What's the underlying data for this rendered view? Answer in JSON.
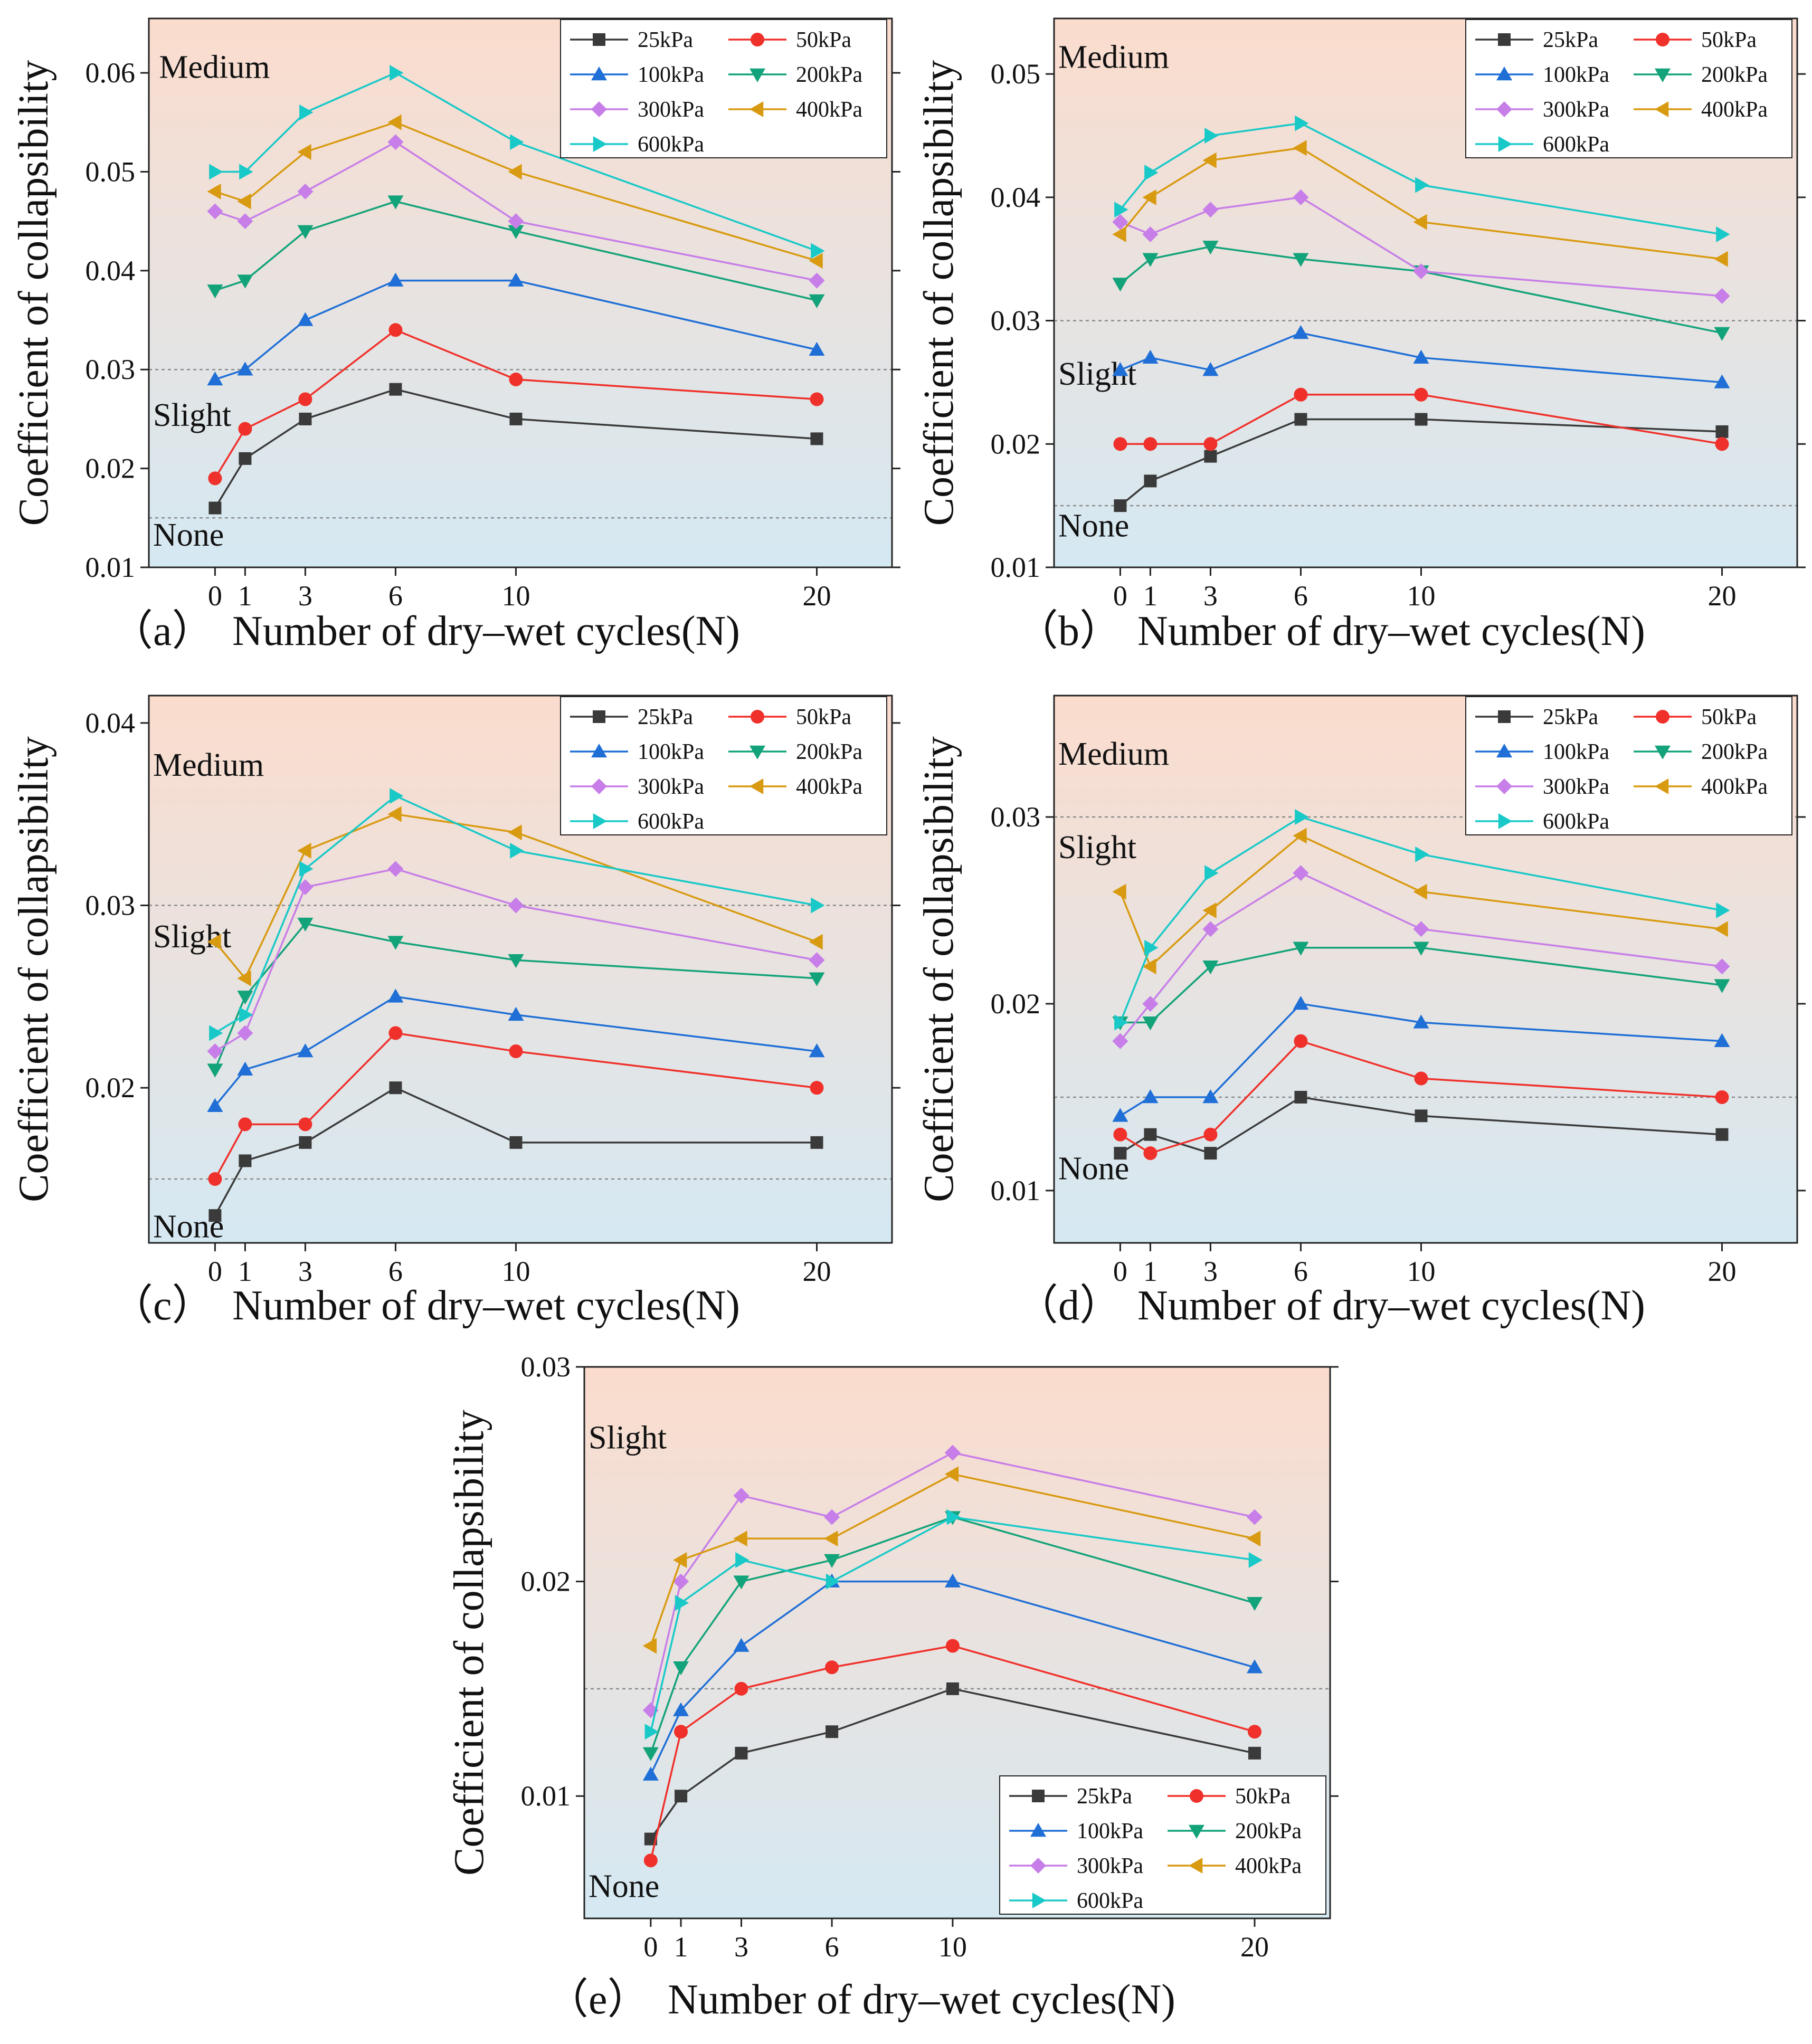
{
  "figure": {
    "series_names": [
      "25kPa",
      "50kPa",
      "100kPa",
      "200kPa",
      "300kPa",
      "400kPa",
      "600kPa"
    ],
    "series_colors": [
      "#3a3a3a",
      "#f0302a",
      "#1f6fd6",
      "#13a37a",
      "#c77ee8",
      "#d89a10",
      "#18c9c8"
    ],
    "series_markers": [
      "square",
      "circle",
      "triangle-up",
      "triangle-down",
      "diamond",
      "triangle-left",
      "triangle-right"
    ],
    "colors": {
      "zone_top": "#fbdccd",
      "zone_bottom": "#d5e9f3",
      "threshold_line": "#8a8a8a"
    }
  },
  "chart_data": [
    {
      "panel": "(a)",
      "type": "line",
      "title": "",
      "xlabel": "Number of dry–wet cycles(N)",
      "ylabel": "Coefficient of collapsibility",
      "x": [
        0,
        1,
        3,
        6,
        10,
        20
      ],
      "x_ticks": [
        "0",
        "1",
        "3",
        "6",
        "10",
        "20"
      ],
      "xlim": [
        -2.2,
        22.5
      ],
      "ylim": [
        0.01,
        0.0655
      ],
      "y_ticks": [
        0.01,
        0.02,
        0.03,
        0.04,
        0.05,
        0.06
      ],
      "y_tick_labels": [
        "0.01",
        "0.02",
        "0.03",
        "0.04",
        "0.05",
        "0.06"
      ],
      "thresholds": [
        0.015,
        0.03
      ],
      "zones": [
        {
          "label": "Medium",
          "y": 0.0595,
          "x": -2.0
        },
        {
          "label": "Slight",
          "y": 0.0243,
          "x": -2.2
        },
        {
          "label": "None",
          "y": 0.0122,
          "x": -2.2
        }
      ],
      "legend_position": "top-right",
      "series": [
        {
          "name": "25kPa",
          "values": [
            0.016,
            0.021,
            0.025,
            0.028,
            0.025,
            0.023
          ]
        },
        {
          "name": "50kPa",
          "values": [
            0.019,
            0.024,
            0.027,
            0.034,
            0.029,
            0.027
          ]
        },
        {
          "name": "100kPa",
          "values": [
            0.029,
            0.03,
            0.035,
            0.039,
            0.039,
            0.032
          ]
        },
        {
          "name": "200kPa",
          "values": [
            0.038,
            0.039,
            0.044,
            0.047,
            0.044,
            0.037
          ]
        },
        {
          "name": "300kPa",
          "values": [
            0.046,
            0.045,
            0.048,
            0.053,
            0.045,
            0.039
          ]
        },
        {
          "name": "400kPa",
          "values": [
            0.048,
            0.047,
            0.052,
            0.055,
            0.05,
            0.041
          ]
        },
        {
          "name": "600kPa",
          "values": [
            0.05,
            0.05,
            0.056,
            0.06,
            0.053,
            0.042
          ]
        }
      ]
    },
    {
      "panel": "(b)",
      "type": "line",
      "title": "",
      "xlabel": "Number of dry–wet cycles(N)",
      "ylabel": "Coefficient of collapsibility",
      "x": [
        0,
        1,
        3,
        6,
        10,
        20
      ],
      "x_ticks": [
        "0",
        "1",
        "3",
        "6",
        "10",
        "20"
      ],
      "xlim": [
        -2.2,
        22.5
      ],
      "ylim": [
        0.01,
        0.0545
      ],
      "y_ticks": [
        0.01,
        0.02,
        0.03,
        0.04,
        0.05
      ],
      "y_tick_labels": [
        "0.01",
        "0.02",
        "0.03",
        "0.04",
        "0.05"
      ],
      "thresholds": [
        0.015,
        0.03
      ],
      "zones": [
        {
          "label": "Medium",
          "y": 0.0505,
          "x": -2.2
        },
        {
          "label": "Slight",
          "y": 0.0248,
          "x": -2.2
        },
        {
          "label": "None",
          "y": 0.0125,
          "x": -2.2
        }
      ],
      "legend_position": "top-right",
      "series": [
        {
          "name": "25kPa",
          "values": [
            0.015,
            0.017,
            0.019,
            0.022,
            0.022,
            0.021
          ]
        },
        {
          "name": "50kPa",
          "values": [
            0.02,
            0.02,
            0.02,
            0.024,
            0.024,
            0.02
          ]
        },
        {
          "name": "100kPa",
          "values": [
            0.026,
            0.027,
            0.026,
            0.029,
            0.027,
            0.025
          ]
        },
        {
          "name": "200kPa",
          "values": [
            0.033,
            0.035,
            0.036,
            0.035,
            0.034,
            0.029
          ]
        },
        {
          "name": "300kPa",
          "values": [
            0.038,
            0.037,
            0.039,
            0.04,
            0.034,
            0.032
          ]
        },
        {
          "name": "400kPa",
          "values": [
            0.037,
            0.04,
            0.043,
            0.044,
            0.038,
            0.035
          ]
        },
        {
          "name": "600kPa",
          "values": [
            0.039,
            0.042,
            0.045,
            0.046,
            0.041,
            0.037
          ]
        }
      ]
    },
    {
      "panel": "(c)",
      "type": "line",
      "title": "",
      "xlabel": "Number of dry–wet cycles(N)",
      "ylabel": "Coefficient of collapsibility",
      "x": [
        0,
        1,
        3,
        6,
        10,
        20
      ],
      "x_ticks": [
        "0",
        "1",
        "3",
        "6",
        "10",
        "20"
      ],
      "xlim": [
        -2.2,
        22.5
      ],
      "ylim": [
        0.0115,
        0.0415
      ],
      "y_ticks": [
        0.02,
        0.03,
        0.04
      ],
      "y_tick_labels": [
        "0.02",
        "0.03",
        "0.04"
      ],
      "thresholds": [
        0.015,
        0.03
      ],
      "zones": [
        {
          "label": "Medium",
          "y": 0.0371,
          "x": -2.2
        },
        {
          "label": "Slight",
          "y": 0.0277,
          "x": -2.2
        },
        {
          "label": "None",
          "y": 0.0118,
          "x": -2.2
        }
      ],
      "legend_position": "top-right",
      "series": [
        {
          "name": "25kPa",
          "values": [
            0.013,
            0.016,
            0.017,
            0.02,
            0.017,
            0.017
          ]
        },
        {
          "name": "50kPa",
          "values": [
            0.015,
            0.018,
            0.018,
            0.023,
            0.022,
            0.02
          ]
        },
        {
          "name": "100kPa",
          "values": [
            0.019,
            0.021,
            0.022,
            0.025,
            0.024,
            0.022
          ]
        },
        {
          "name": "200kPa",
          "values": [
            0.021,
            0.025,
            0.029,
            0.028,
            0.027,
            0.026
          ]
        },
        {
          "name": "300kPa",
          "values": [
            0.022,
            0.023,
            0.031,
            0.032,
            0.03,
            0.027
          ]
        },
        {
          "name": "400kPa",
          "values": [
            0.028,
            0.026,
            0.033,
            0.035,
            0.034,
            0.028
          ]
        },
        {
          "name": "600kPa",
          "values": [
            0.023,
            0.024,
            0.032,
            0.036,
            0.033,
            0.03
          ]
        }
      ]
    },
    {
      "panel": "(d)",
      "type": "line",
      "title": "",
      "xlabel": "Number of dry–wet cycles(N)",
      "ylabel": "Coefficient of collapsibility",
      "x": [
        0,
        1,
        3,
        6,
        10,
        20
      ],
      "x_ticks": [
        "0",
        "1",
        "3",
        "6",
        "10",
        "20"
      ],
      "xlim": [
        -2.2,
        22.5
      ],
      "ylim": [
        0.0072,
        0.0365
      ],
      "y_ticks": [
        0.01,
        0.02,
        0.03
      ],
      "y_tick_labels": [
        "0.01",
        "0.02",
        "0.03"
      ],
      "thresholds": [
        0.015,
        0.03
      ],
      "zones": [
        {
          "label": "Medium",
          "y": 0.0328,
          "x": -2.2
        },
        {
          "label": "Slight",
          "y": 0.0278,
          "x": -2.2
        },
        {
          "label": "None",
          "y": 0.0106,
          "x": -2.2
        }
      ],
      "legend_position": "top-right",
      "series": [
        {
          "name": "25kPa",
          "values": [
            0.012,
            0.013,
            0.012,
            0.015,
            0.014,
            0.013
          ]
        },
        {
          "name": "50kPa",
          "values": [
            0.013,
            0.012,
            0.013,
            0.018,
            0.016,
            0.015
          ]
        },
        {
          "name": "100kPa",
          "values": [
            0.014,
            0.015,
            0.015,
            0.02,
            0.019,
            0.018
          ]
        },
        {
          "name": "200kPa",
          "values": [
            0.019,
            0.019,
            0.022,
            0.023,
            0.023,
            0.021
          ]
        },
        {
          "name": "300kPa",
          "values": [
            0.018,
            0.02,
            0.024,
            0.027,
            0.024,
            0.022
          ]
        },
        {
          "name": "400kPa",
          "values": [
            0.026,
            0.022,
            0.025,
            0.029,
            0.026,
            0.024
          ]
        },
        {
          "name": "600kPa",
          "values": [
            0.019,
            0.023,
            0.027,
            0.03,
            0.028,
            0.025
          ]
        }
      ]
    },
    {
      "panel": "(e)",
      "type": "line",
      "title": "",
      "xlabel": "Number of dry–wet cycles(N)",
      "ylabel": "Coefficient of collapsibility",
      "x": [
        0,
        1,
        3,
        6,
        10,
        20
      ],
      "x_ticks": [
        "0",
        "1",
        "3",
        "6",
        "10",
        "20"
      ],
      "xlim": [
        -2.2,
        22.5
      ],
      "ylim": [
        0.0043,
        0.03
      ],
      "y_ticks": [
        0.01,
        0.02,
        0.03
      ],
      "y_tick_labels": [
        "0.01",
        "0.02",
        "0.03"
      ],
      "thresholds": [
        0.015
      ],
      "zones": [
        {
          "label": "Slight",
          "y": 0.0262,
          "x": -2.2
        },
        {
          "label": "None",
          "y": 0.0053,
          "x": -2.2
        }
      ],
      "legend_position": "bottom-right",
      "series": [
        {
          "name": "25kPa",
          "values": [
            0.008,
            0.01,
            0.012,
            0.013,
            0.015,
            0.012
          ]
        },
        {
          "name": "50kPa",
          "values": [
            0.007,
            0.013,
            0.015,
            0.016,
            0.017,
            0.013
          ]
        },
        {
          "name": "100kPa",
          "values": [
            0.011,
            0.014,
            0.017,
            0.02,
            0.02,
            0.016
          ]
        },
        {
          "name": "200kPa",
          "values": [
            0.012,
            0.016,
            0.02,
            0.021,
            0.023,
            0.019
          ]
        },
        {
          "name": "300kPa",
          "values": [
            0.014,
            0.02,
            0.024,
            0.023,
            0.026,
            0.023
          ]
        },
        {
          "name": "400kPa",
          "values": [
            0.017,
            0.021,
            0.022,
            0.022,
            0.025,
            0.022
          ]
        },
        {
          "name": "600kPa",
          "values": [
            0.013,
            0.019,
            0.021,
            0.02,
            0.023,
            0.021
          ]
        }
      ]
    }
  ]
}
